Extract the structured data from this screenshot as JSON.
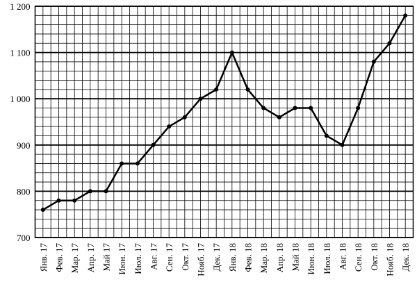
{
  "chart_data": {
    "type": "line",
    "categories": [
      "Янв. 17",
      "Фев. 17",
      "Мар. 17",
      "Апр. 17",
      "Май 17",
      "Июн. 17",
      "Июл. 17",
      "Авг. 17",
      "Сен. 17",
      "Окт. 17",
      "Нояб. 17",
      "Дек. 17",
      "Янв. 18",
      "Фев. 18",
      "Мар. 18",
      "Апр. 18",
      "Май 18",
      "Июн. 18",
      "Июл. 18",
      "Авг. 18",
      "Сен. 18",
      "Окт. 18",
      "Нояб. 18",
      "Дек. 18"
    ],
    "values": [
      760,
      780,
      780,
      800,
      800,
      860,
      860,
      900,
      940,
      960,
      1000,
      1020,
      1100,
      1020,
      980,
      960,
      980,
      980,
      920,
      900,
      980,
      1080,
      1120,
      1180
    ],
    "color": "#000000",
    "ylim": [
      700,
      1200
    ],
    "yticks": [
      700,
      800,
      900,
      {
        "value": 1000,
        "label": "1 000"
      },
      {
        "value": 1100,
        "label": "1 100"
      },
      {
        "value": 1200,
        "label": "1 200"
      }
    ],
    "grid": true
  }
}
